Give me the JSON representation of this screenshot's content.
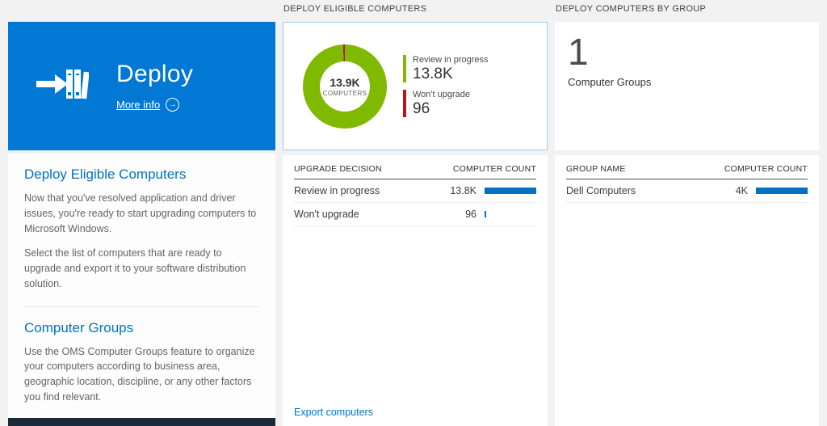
{
  "colors": {
    "tile_blue": "#0078d4",
    "accent_blue": "#0072c6",
    "bar_blue": "#0072c6",
    "green": "#7fba00",
    "red": "#ba141a",
    "dark_tile": "#1c2b39"
  },
  "left_panel": {
    "tile_title": "Deploy",
    "more_info_label": "More info",
    "sections": [
      {
        "heading": "Deploy Eligible Computers",
        "paragraphs": [
          "Now that you've resolved application and driver issues, you're ready to start upgrading computers to Microsoft Windows.",
          "Select the list of computers that are ready to upgrade and export it to your software distribution solution."
        ]
      },
      {
        "heading": "Computer Groups",
        "paragraphs": [
          "Use the OMS Computer Groups feature to organize your computers according to business area, geographic location, discipline, or any other factors you find relevant."
        ]
      }
    ]
  },
  "eligible_computers": {
    "header": "DEPLOY ELIGIBLE COMPUTERS",
    "donut_center_value": "13.9K",
    "donut_center_label": "COMPUTERS",
    "legend": [
      {
        "label": "Review in progress",
        "value": "13.8K"
      },
      {
        "label": "Won't upgrade",
        "value": "96"
      }
    ],
    "table": {
      "col1": "UPGRADE DECISION",
      "col2": "COMPUTER COUNT",
      "rows": [
        {
          "label": "Review in progress",
          "value": "13.8K",
          "bar_pct": 100
        },
        {
          "label": "Won't upgrade",
          "value": "96",
          "bar_pct": 3
        }
      ]
    },
    "export_label": "Export computers"
  },
  "computers_by_group": {
    "header": "DEPLOY COMPUTERS BY GROUP",
    "group_count": "1",
    "group_count_label": "Computer Groups",
    "table": {
      "col1": "GROUP NAME",
      "col2": "COMPUTER COUNT",
      "rows": [
        {
          "label": "Dell Computers",
          "value": "4K",
          "bar_pct": 100
        }
      ]
    }
  },
  "chart_data": {
    "type": "pie",
    "title": "Deploy Eligible Computers",
    "center_value": "13.9K",
    "center_label": "COMPUTERS",
    "segments": [
      {
        "label": "Review in progress",
        "value": 13800,
        "pct": 99.3,
        "color": "#7fba00"
      },
      {
        "label": "Won't upgrade",
        "value": 96,
        "pct": 0.7,
        "color": "#ba141a"
      }
    ],
    "legend_position": "right"
  }
}
